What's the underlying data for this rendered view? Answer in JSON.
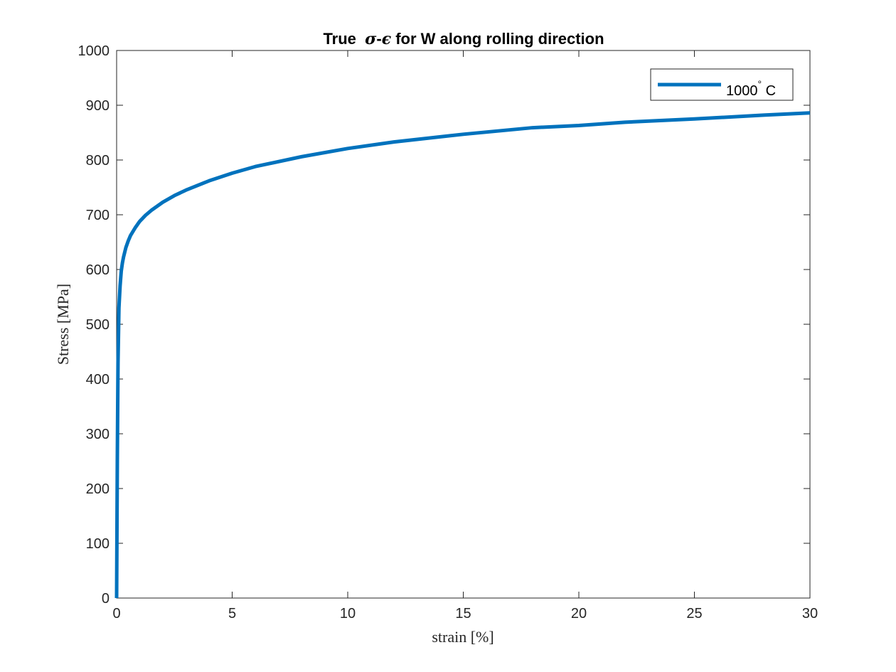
{
  "chart_data": {
    "type": "line",
    "title": {
      "prefix": "True  ",
      "sigma": "σ",
      "dash": "-",
      "epsilon": "ϵ",
      "suffix": " for W along rolling direction"
    },
    "xlabel": "strain [%]",
    "ylabel": "Stress [MPa]",
    "xlim": [
      0,
      30
    ],
    "ylim": [
      0,
      1000
    ],
    "xticks": [
      0,
      5,
      10,
      15,
      20,
      25,
      30
    ],
    "yticks": [
      0,
      100,
      200,
      300,
      400,
      500,
      600,
      700,
      800,
      900,
      1000
    ],
    "grid": false,
    "legend": {
      "placement": "top-right"
    },
    "series": [
      {
        "name": "1000",
        "name_superscript": "°",
        "name_suffix": " C",
        "color": "#0072BD",
        "x": [
          0,
          0.03,
          0.06,
          0.1,
          0.15,
          0.2,
          0.25,
          0.3,
          0.4,
          0.5,
          0.6,
          0.8,
          1.0,
          1.25,
          1.5,
          2,
          2.5,
          3,
          4,
          5,
          6,
          8,
          10,
          12,
          15,
          18,
          20,
          22,
          25,
          28,
          30
        ],
        "y": [
          0,
          250,
          430,
          530,
          570,
          597,
          612,
          623,
          640,
          652,
          662,
          676,
          688,
          699,
          708,
          723,
          735,
          745,
          762,
          776,
          788,
          806,
          821,
          833,
          847,
          859,
          863,
          869,
          875,
          882,
          886
        ]
      }
    ]
  }
}
